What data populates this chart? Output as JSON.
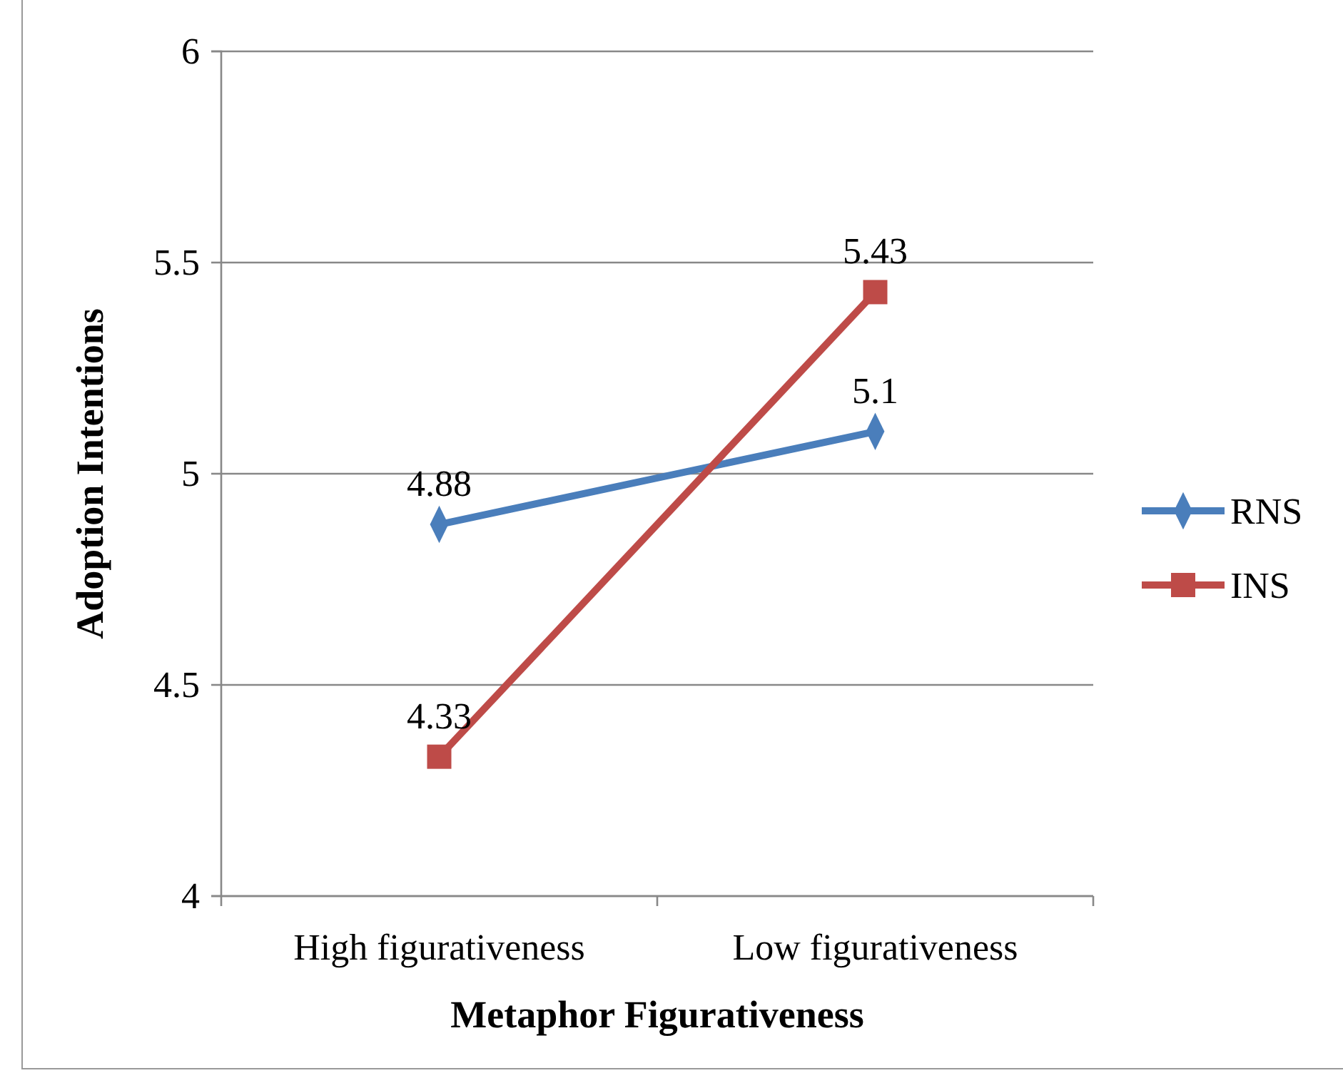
{
  "chart_data": {
    "type": "line",
    "xlabel": "Metaphor Figurativeness",
    "ylabel": "Adoption Intentions",
    "categories": [
      "High figurativeness",
      "Low figurativeness"
    ],
    "series": [
      {
        "name": "RNS",
        "color": "#4a7ebb",
        "marker": "diamond",
        "values": [
          4.88,
          5.1
        ]
      },
      {
        "name": "INS",
        "color": "#be4b48",
        "marker": "square",
        "values": [
          4.33,
          5.43
        ]
      }
    ],
    "ylim": [
      4,
      6
    ],
    "yticks": [
      4,
      4.5,
      5,
      5.5,
      6
    ],
    "grid": "y",
    "legend": "right",
    "data_labels": true
  }
}
